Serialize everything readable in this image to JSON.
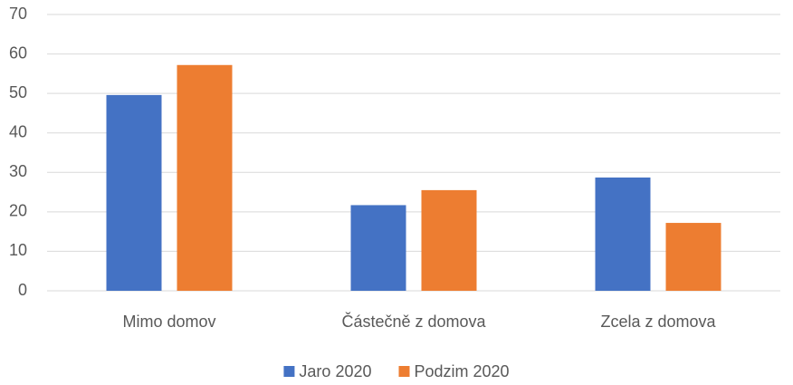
{
  "chart_data": {
    "type": "bar",
    "categories": [
      "Mimo domov",
      "Částečně z domova",
      "Zcela z domova"
    ],
    "series": [
      {
        "name": "Jaro 2020",
        "color": "#4472c4",
        "values": [
          49.6,
          21.7,
          28.7
        ]
      },
      {
        "name": "Podzim 2020",
        "color": "#ed7d31",
        "values": [
          57.2,
          25.5,
          17.2
        ]
      }
    ],
    "ylim": [
      0,
      70
    ],
    "yticks": [
      0,
      10,
      20,
      30,
      40,
      50,
      60,
      70
    ],
    "grid": true,
    "legend": "bottom"
  }
}
